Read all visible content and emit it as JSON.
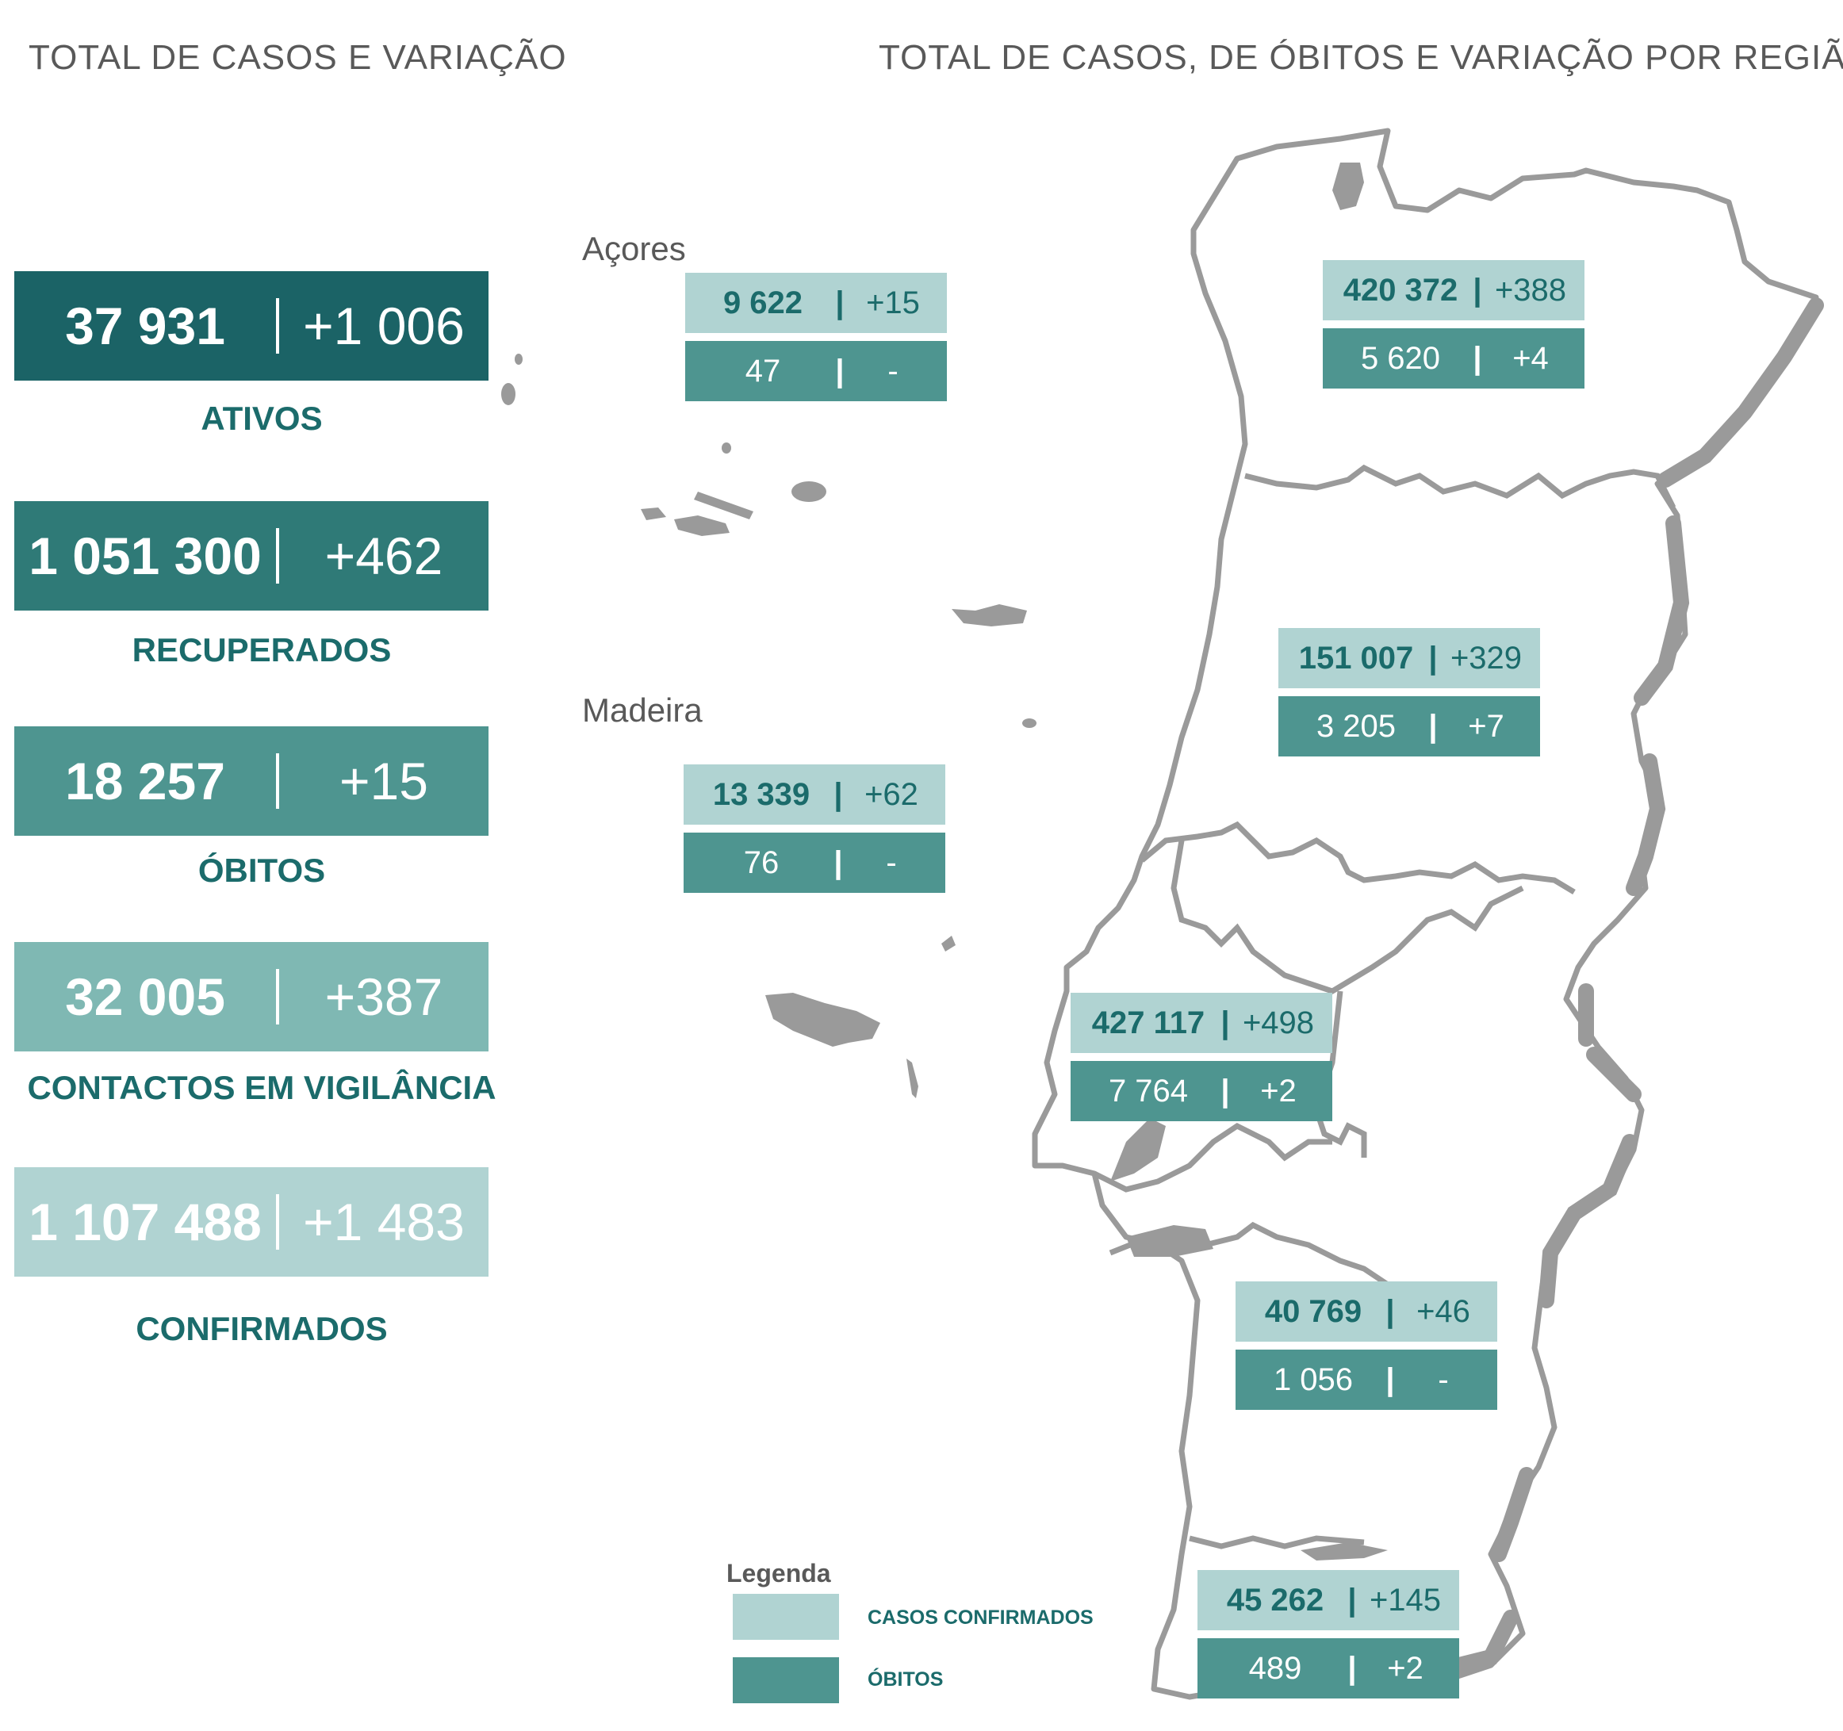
{
  "headings": {
    "left": "TOTAL DE CASOS E VARIAÇÃO",
    "right": "TOTAL DE CASOS, DE ÓBITOS E VARIAÇÃO POR REGIÃO"
  },
  "stats": [
    {
      "value": "37 931",
      "variation": "+1 006",
      "label": "ATIVOS",
      "color": "#1b6366"
    },
    {
      "value": "1 051 300",
      "variation": "+462",
      "label": "RECUPERADOS",
      "color": "#2f7a77"
    },
    {
      "value": "18 257",
      "variation": "+15",
      "label": "ÓBITOS",
      "color": "#4e9590"
    },
    {
      "value": "32 005",
      "variation": "+387",
      "label": "CONTACTOS EM VIGILÂNCIA",
      "color": "#7fb8b3"
    },
    {
      "value": "1 107 488",
      "variation": "+1 483",
      "label": "CONFIRMADOS",
      "color": "#b0d3d2"
    }
  ],
  "islands": {
    "azores": "Açores",
    "madeira": "Madeira"
  },
  "regions": [
    {
      "cases": "9 622",
      "cases_var": "+15",
      "deaths": "47",
      "deaths_var": "-"
    },
    {
      "cases": "13 339",
      "cases_var": "+62",
      "deaths": "76",
      "deaths_var": "-"
    },
    {
      "cases": "420 372",
      "cases_var": "+388",
      "deaths": "5 620",
      "deaths_var": "+4"
    },
    {
      "cases": "151 007",
      "cases_var": "+329",
      "deaths": "3 205",
      "deaths_var": "+7"
    },
    {
      "cases": "427 117",
      "cases_var": "+498",
      "deaths": "7 764",
      "deaths_var": "+2"
    },
    {
      "cases": "40 769",
      "cases_var": "+46",
      "deaths": "1 056",
      "deaths_var": "-"
    },
    {
      "cases": "45 262",
      "cases_var": "+145",
      "deaths": "489",
      "deaths_var": "+2"
    }
  ],
  "separator": "|",
  "legend": {
    "title": "Legenda",
    "cases_label": "CASOS CONFIRMADOS",
    "deaths_label": "ÓBITOS",
    "cases_color": "#b0d3d2",
    "deaths_color": "#4e9590"
  }
}
